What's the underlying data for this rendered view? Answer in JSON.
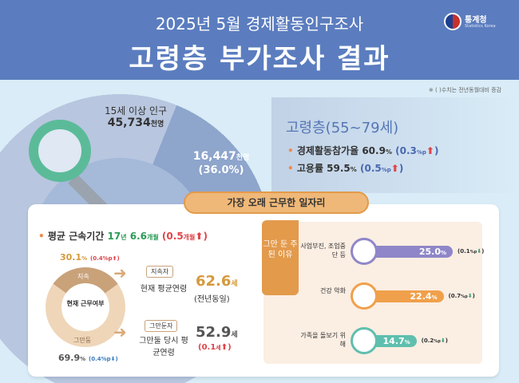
{
  "header": {
    "subtitle": "2025년 5월 경제활동인구조사",
    "title": "고령층 부가조사 결과",
    "logo_name": "통계청",
    "logo_sub": "Statistics Korea"
  },
  "note": "※ ( )수치는 전년동월대비 증감",
  "population": {
    "label": "15세 이상 인구",
    "value": "45,734",
    "unit": "천명"
  },
  "elderly": {
    "value": "16,447",
    "unit": "천명",
    "share": "(36.0%)",
    "title": "고령층(55~79세)",
    "stats": [
      {
        "label": "경제활동참가율",
        "value": "60.9",
        "unit": "%",
        "change": "0.3",
        "change_unit": "%p",
        "direction": "up"
      },
      {
        "label": "고용률",
        "value": "59.5",
        "unit": "%",
        "change": "0.5",
        "change_unit": "%p",
        "direction": "up"
      }
    ]
  },
  "longest_job": {
    "title": "가장 오래 근무한 일자리",
    "tenure": {
      "label": "평균 근속기간",
      "years": "17",
      "years_unit": "년",
      "months": "6.6",
      "months_unit": "개월",
      "change": "0.5",
      "change_unit": "개월",
      "direction": "up"
    },
    "status": {
      "center": "현재 근무여부",
      "continuing": {
        "label": "지속",
        "pct": "30.1",
        "unit": "%",
        "change": "0.4%p",
        "direction": "up",
        "value": 30.1
      },
      "quit": {
        "label": "그만둠",
        "pct": "69.9",
        "unit": "%",
        "change": "0.4%p",
        "direction": "down",
        "value": 69.9
      }
    },
    "continuing_age": {
      "badge": "지속자",
      "label": "현재 평균연령",
      "value": "62.6",
      "unit": "세",
      "change": "(전년동일)"
    },
    "quit_age": {
      "badge": "그만둔자",
      "label": "그만둘 당시 평균연령",
      "value": "52.9",
      "unit": "세",
      "change": "0.1",
      "change_unit": "세",
      "direction": "up"
    },
    "reasons": {
      "title": "그만 둔 주된 이유",
      "items": [
        {
          "label": "사업부진, 조업중단 등",
          "value": 25.0,
          "text": "25.0",
          "change": "0.1",
          "change_unit": "%p",
          "direction": "down",
          "color": "#8f86c9",
          "icon": "declining-chart-icon"
        },
        {
          "label": "건강 악화",
          "value": 22.4,
          "text": "22.4",
          "change": "0.7",
          "change_unit": "%p",
          "direction": "down",
          "color": "#f0a04b",
          "icon": "elderly-person-icon"
        },
        {
          "label": "가족을 돌보기 위해",
          "value": 14.7,
          "text": "14.7",
          "change": "0.2",
          "change_unit": "%p",
          "direction": "down",
          "color": "#5fbfae",
          "icon": "family-care-icon"
        }
      ]
    }
  }
}
